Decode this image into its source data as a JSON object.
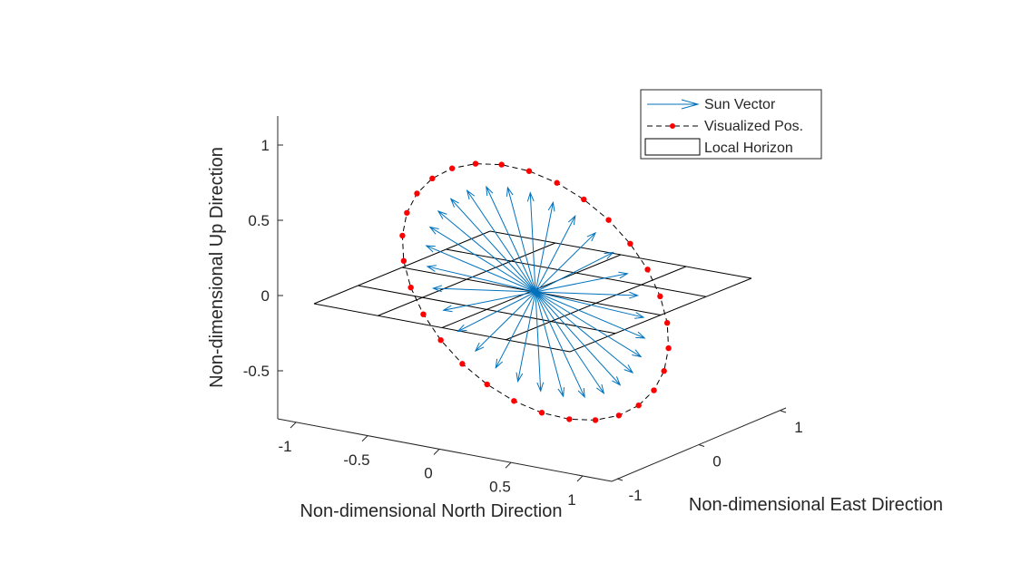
{
  "chart_data": {
    "type": "3d-quiver",
    "title": "",
    "xlabel": "Non-dimensional North Direction",
    "ylabel": "Non-dimensional East Direction",
    "zlabel": "Non-dimensional Up Direction",
    "xlim": [
      -1,
      1
    ],
    "ylim": [
      -1,
      1
    ],
    "zlim": [
      -0.8,
      1.2
    ],
    "x_ticks": [
      "-1",
      "-0.5",
      "0",
      "0.5",
      "1"
    ],
    "y_ticks": [
      "-1",
      "0",
      "1"
    ],
    "z_ticks": [
      "-0.5",
      "0",
      "0.5",
      "1"
    ],
    "legend": {
      "position": "top-right",
      "entries": [
        {
          "label": "Sun Vector",
          "style": "arrow"
        },
        {
          "label": "Visualized Pos.",
          "style": "dashed-line-with-dots"
        },
        {
          "label": "Local Horizon",
          "style": "box"
        }
      ]
    },
    "colors": {
      "sun_vector": "#0072BD",
      "positions": "#FF0000",
      "path": "#000000",
      "horizon": "#000000",
      "axes": "#262626"
    },
    "horizon_grid": {
      "x_range": [
        -1,
        1
      ],
      "y_range": [
        -1,
        1
      ],
      "z": 0,
      "divisions": 4
    },
    "sun_path": {
      "center": [
        0,
        0,
        0
      ],
      "axis_1": [
        -0.65,
        -0.44,
        0.0
      ],
      "axis_2": [
        0.64,
        -0.12,
        0.77
      ],
      "num_points": 30,
      "note_removed": true
    }
  }
}
